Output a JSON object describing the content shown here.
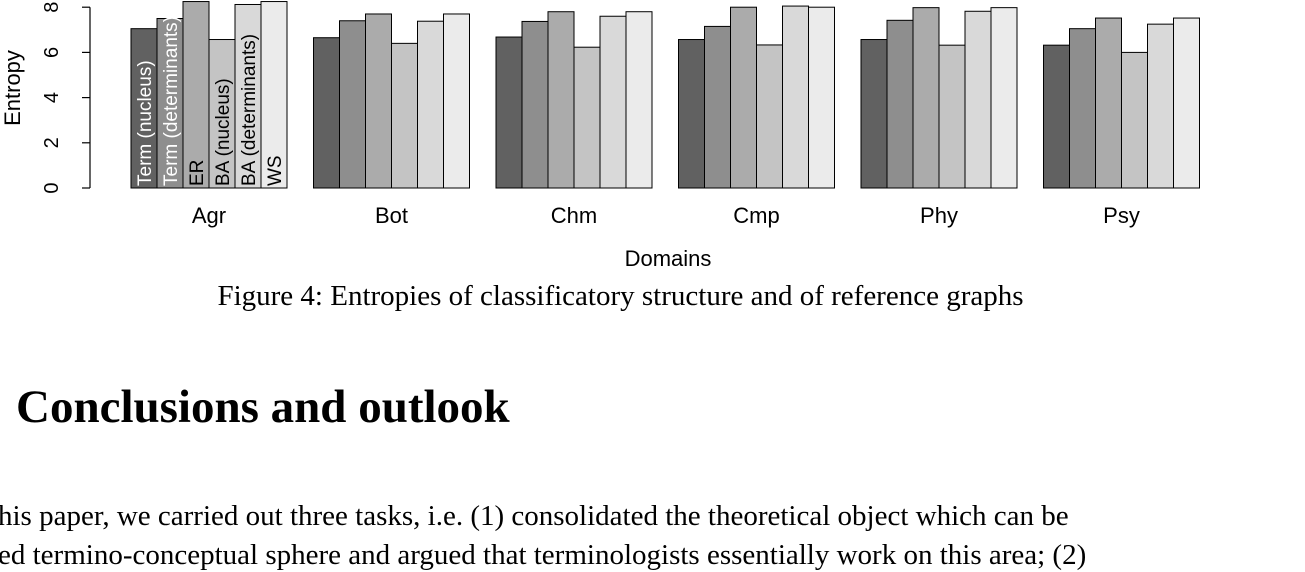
{
  "figure": {
    "caption": "Figure 4: Entropies of classificatory structure and of reference graphs"
  },
  "chart_data": {
    "type": "bar",
    "title": "",
    "xlabel": "Domains",
    "ylabel": "Entropy",
    "ylim": [
      0,
      8
    ],
    "yticks": [
      "0",
      "2",
      "4",
      "6",
      "8"
    ],
    "categories": [
      "Agr",
      "Bot",
      "Chm",
      "Cmp",
      "Phy",
      "Psy"
    ],
    "series": [
      {
        "name": "Term (nucleus)",
        "color": "#616161",
        "values": [
          7.05,
          6.65,
          6.68,
          6.57,
          6.57,
          6.32
        ]
      },
      {
        "name": "Term (determinants)",
        "color": "#8e8e8e",
        "values": [
          7.5,
          7.4,
          7.37,
          7.15,
          7.42,
          7.05
        ]
      },
      {
        "name": "ER",
        "color": "#ababab",
        "values": [
          8.25,
          7.7,
          7.8,
          8.0,
          7.98,
          7.52
        ]
      },
      {
        "name": "BA (nucleus)",
        "color": "#c4c4c4",
        "values": [
          6.57,
          6.4,
          6.23,
          6.33,
          6.32,
          6.0
        ]
      },
      {
        "name": "BA (determinants)",
        "color": "#d9d9d9",
        "values": [
          8.12,
          7.38,
          7.6,
          8.05,
          7.82,
          7.25
        ]
      },
      {
        "name": "WS",
        "color": "#ebebeb",
        "values": [
          8.25,
          7.7,
          7.8,
          8.0,
          7.98,
          7.52
        ]
      }
    ],
    "legend_placement": "rotated labels inside first group of bars",
    "grid": false
  },
  "section": {
    "title": "Conclusions and outlook"
  },
  "body": {
    "lines": [
      "his paper, we carried out three tasks, i.e. (1) consolidated the theoretical object which can be",
      "ed termino-conceptual sphere and argued that terminologists essentially work on this area; (2)"
    ]
  }
}
